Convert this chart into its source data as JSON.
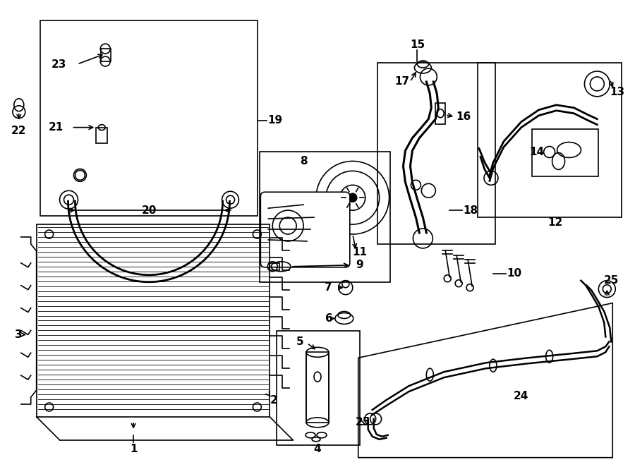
{
  "bg_color": "#ffffff",
  "line_color": "#000000",
  "label_color": "#000000",
  "fig_width": 9.0,
  "fig_height": 6.62,
  "dpi": 100
}
